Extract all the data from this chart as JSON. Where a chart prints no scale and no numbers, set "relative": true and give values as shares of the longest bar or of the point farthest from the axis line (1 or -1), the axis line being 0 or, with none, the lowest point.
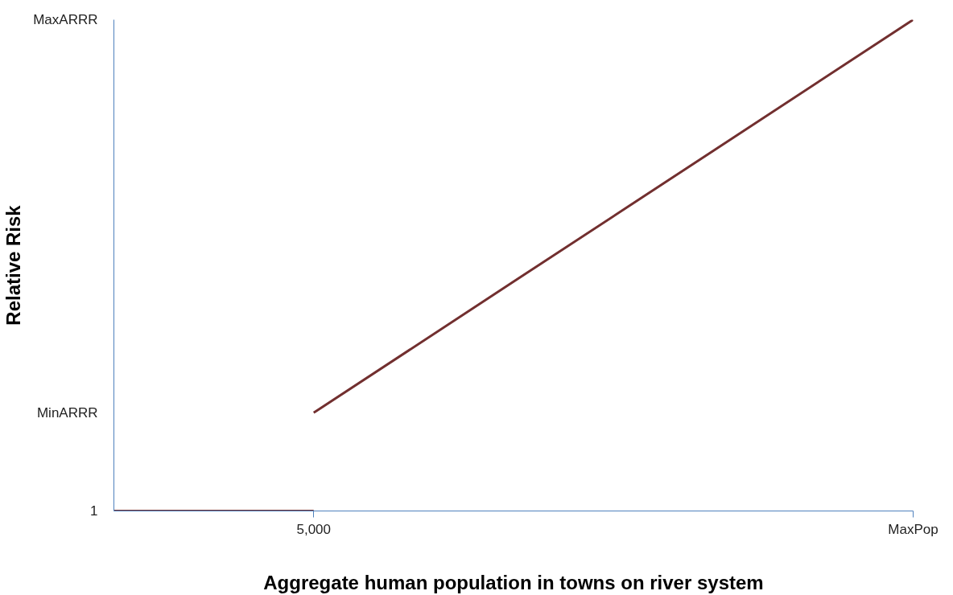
{
  "chart_data": {
    "type": "line",
    "xlabel": "Aggregate human population in towns on river system",
    "ylabel": "Relative Risk",
    "relative": true,
    "categories": [
      null,
      "5,000",
      null,
      null,
      "MaxPop"
    ],
    "annotations": [
      "1",
      "MinARRR",
      "MaxARRR"
    ],
    "grid": false,
    "marker": "none",
    "line_style": "solid",
    "series": [
      {
        "color": "#722f2f",
        "values": [
          0,
          0,
          null,
          null,
          null
        ]
      },
      {
        "color": "#722f2f",
        "values": [
          null,
          0.2,
          0.4667,
          0.7333,
          1
        ]
      }
    ]
  }
}
